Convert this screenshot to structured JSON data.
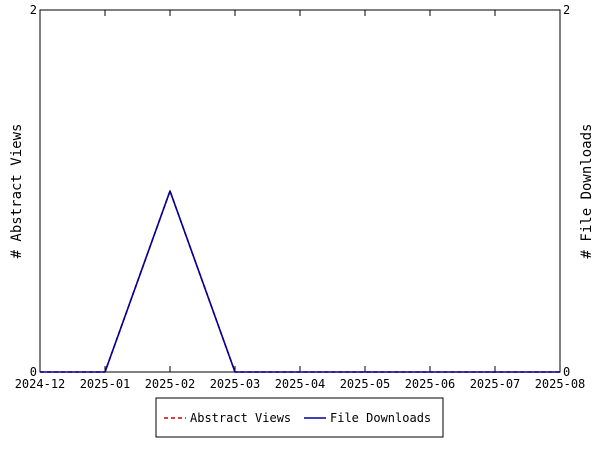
{
  "chart_data": {
    "type": "line",
    "x": [
      "2024-12",
      "2025-01",
      "2025-02",
      "2025-03",
      "2025-04",
      "2025-05",
      "2025-06",
      "2025-07",
      "2025-08"
    ],
    "series": [
      {
        "name": "Abstract Views",
        "axis": "left",
        "color": "#cc0000",
        "style": "dashed",
        "values": [
          0,
          0,
          1,
          0,
          0,
          0,
          0,
          0,
          0
        ]
      },
      {
        "name": "File Downloads",
        "axis": "right",
        "color": "#000099",
        "style": "solid",
        "values": [
          0,
          0,
          1,
          0,
          0,
          0,
          0,
          0,
          0
        ]
      }
    ],
    "ylabel_left": "# Abstract Views",
    "ylabel_right": "# File Downloads",
    "ylim_left": [
      0,
      2
    ],
    "ylim_right": [
      0,
      2
    ],
    "yticks_left": [
      "0",
      "2"
    ],
    "yticks_right": [
      "0",
      "2"
    ],
    "grid": false,
    "legend_position": "bottom-center"
  }
}
